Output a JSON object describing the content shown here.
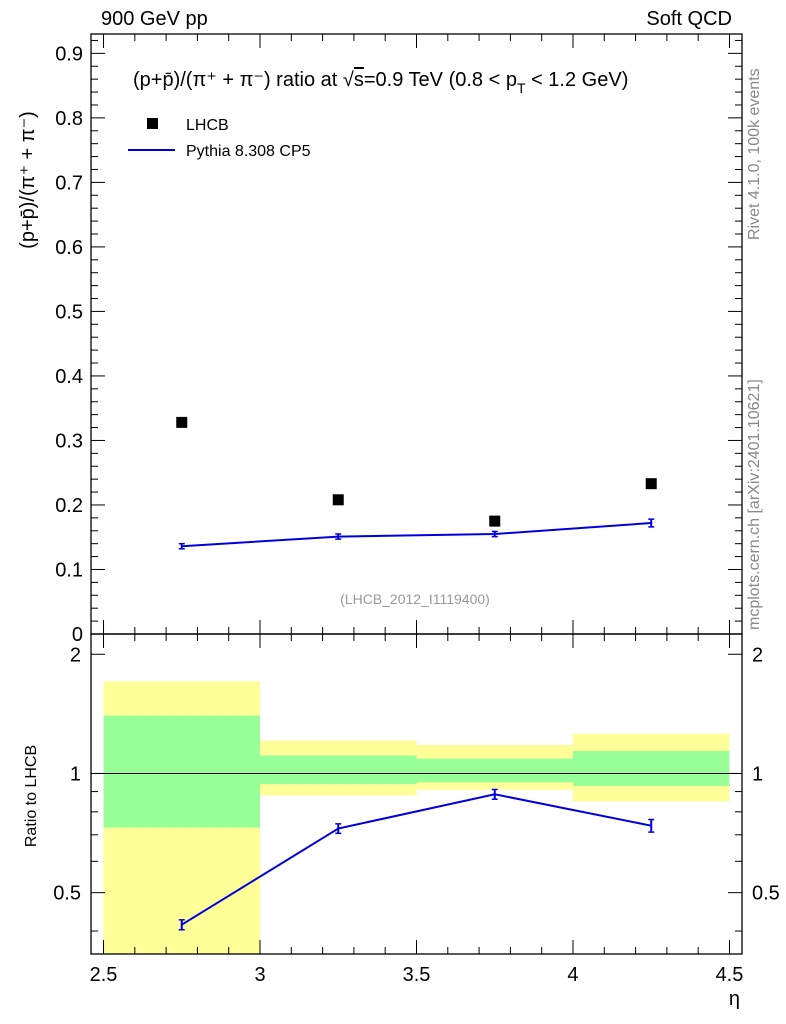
{
  "header": {
    "left": "900 GeV pp",
    "right": "Soft QCD"
  },
  "side_labels": {
    "rivet": "Rivet 4.1.0,  100k events",
    "mcplots": "mcplots.cern.ch [arXiv:2401.10621]"
  },
  "colors": {
    "mc_line": "#0000dd",
    "band_inner": "#99ff99",
    "band_outer": "#ffff99",
    "data_marker": "#000000",
    "watermark": "#999999"
  },
  "chart_data": [
    {
      "type": "scatter",
      "title": "(p+p̄)/(π⁺ + π⁻) ratio at √s=0.9 TeV (0.8 < pT < 1.2 GeV)",
      "title_parts": {
        "lead": "(p+p̄)/(π⁺ + π⁻) ratio at ",
        "root": "√",
        "root_arg": "s",
        "mid": "=0.9 TeV (0.8 < p",
        "sub": "T",
        "tail": " < 1.2 GeV)"
      },
      "ylabel": "(p+p̄)/(π⁺ + π⁻)",
      "ylim": [
        0,
        0.93
      ],
      "yticks": [
        0,
        0.1,
        0.2,
        0.3,
        0.4,
        0.5,
        0.6,
        0.7,
        0.8,
        0.9
      ],
      "ytick_labels": [
        "0",
        "0.1",
        "0.2",
        "0.3",
        "0.4",
        "0.5",
        "0.6",
        "0.7",
        "0.8",
        "0.9"
      ],
      "xlim": [
        2.46,
        4.54
      ],
      "watermark": "(LHCB_2012_I1119400)",
      "legend_position": "top-left",
      "series": [
        {
          "name": "LHCB",
          "style": "markers",
          "x": [
            2.75,
            3.25,
            3.75,
            4.25
          ],
          "y": [
            0.328,
            0.208,
            0.175,
            0.233
          ]
        },
        {
          "name": "Pythia 8.308 CP5",
          "style": "line",
          "x": [
            2.75,
            3.25,
            3.75,
            4.25
          ],
          "y": [
            0.136,
            0.151,
            0.155,
            0.172
          ],
          "yerr": [
            0.004,
            0.004,
            0.004,
            0.006
          ]
        }
      ]
    },
    {
      "type": "line",
      "ylabel": "Ratio to LHCB",
      "xlabel": "η",
      "xlim": [
        2.46,
        4.54
      ],
      "ylim": [
        0.35,
        2.25
      ],
      "xticks": [
        2.5,
        3,
        3.5,
        4,
        4.5
      ],
      "xtick_labels": [
        "2.5",
        "3",
        "3.5",
        "4",
        "4.5"
      ],
      "yticks": [
        0.5,
        1,
        2
      ],
      "ytick_labels": [
        "0.5",
        "1",
        "2"
      ],
      "reference_line": 1,
      "bins": [
        {
          "x0": 2.5,
          "x1": 3.0,
          "inner": [
            0.73,
            1.4
          ],
          "outer": [
            0.35,
            1.71
          ]
        },
        {
          "x0": 3.0,
          "x1": 3.5,
          "inner": [
            0.94,
            1.11
          ],
          "outer": [
            0.88,
            1.21
          ]
        },
        {
          "x0": 3.5,
          "x1": 4.0,
          "inner": [
            0.95,
            1.09
          ],
          "outer": [
            0.91,
            1.18
          ]
        },
        {
          "x0": 4.0,
          "x1": 4.5,
          "inner": [
            0.93,
            1.14
          ],
          "outer": [
            0.85,
            1.26
          ]
        }
      ],
      "series": [
        {
          "name": "Pythia 8.308 CP5",
          "x": [
            2.75,
            3.25,
            3.75,
            4.25
          ],
          "y": [
            0.415,
            0.726,
            0.886,
            0.738
          ],
          "yerr": [
            0.012,
            0.02,
            0.025,
            0.027
          ]
        }
      ]
    }
  ]
}
